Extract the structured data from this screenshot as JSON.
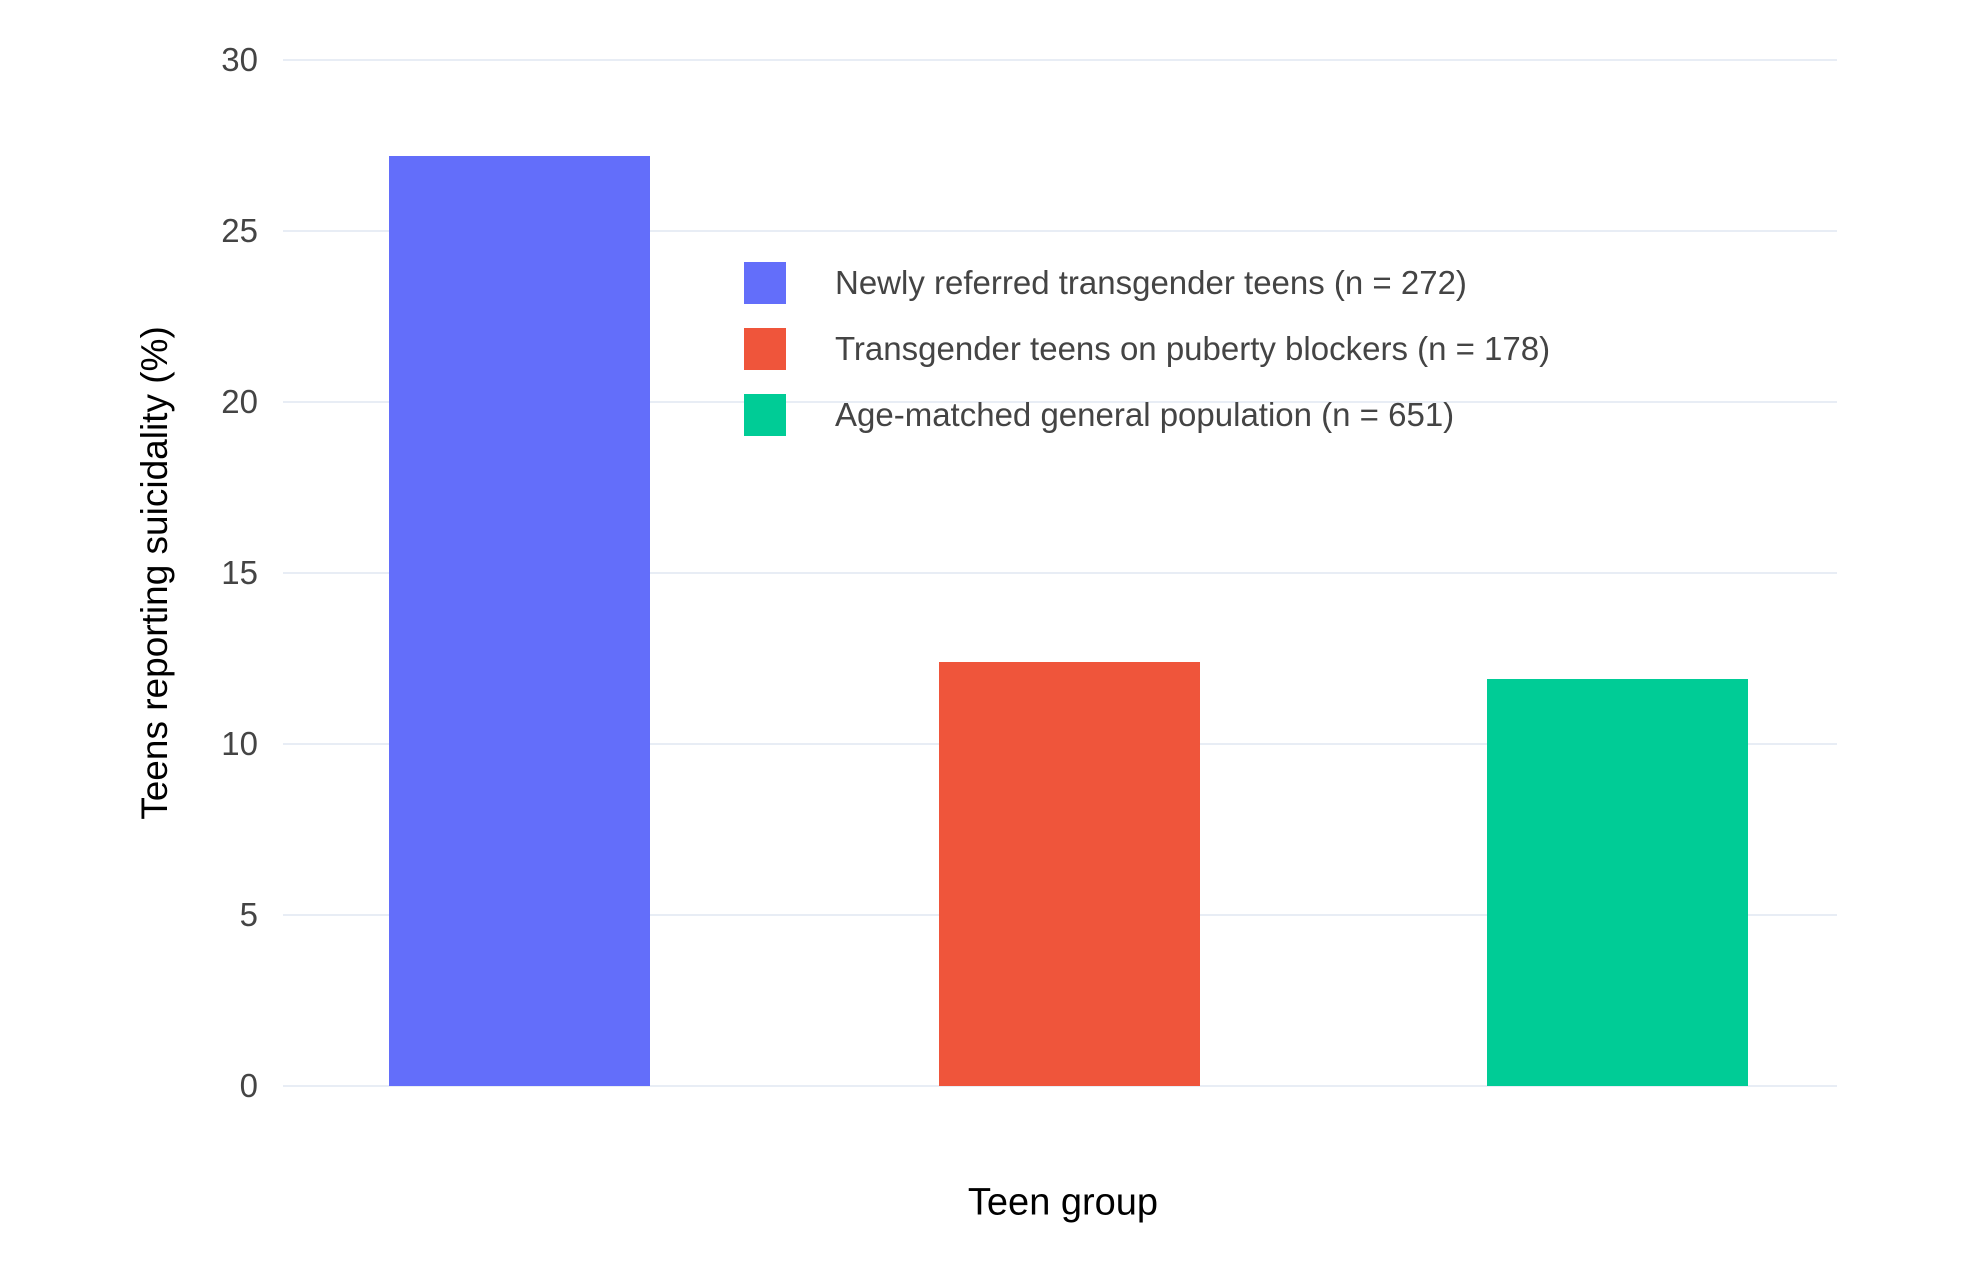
{
  "chart_data": {
    "type": "bar",
    "title": "",
    "xlabel": "Teen group",
    "ylabel": "Teens reporting suicidality (%)",
    "categories": [
      "Newly referred transgender teens (n = 272)",
      "Transgender teens on puberty blockers (n = 178)",
      "Age-matched general population (n = 651)"
    ],
    "values": [
      27.2,
      12.4,
      11.9
    ],
    "bar_colors": [
      "#636EFA",
      "#EF553B",
      "#00CC96"
    ],
    "ylim": [
      0,
      30
    ],
    "yticks": [
      0,
      5,
      10,
      15,
      20,
      25,
      30
    ],
    "xticks": [],
    "grid": true,
    "legend_position": "inside-top-center"
  },
  "colors": {
    "background": "#FFFFFF",
    "grid": "#E8EDF5",
    "text": "#444444",
    "blue": "#636EFA",
    "red": "#EF553B",
    "green": "#00CC96"
  }
}
